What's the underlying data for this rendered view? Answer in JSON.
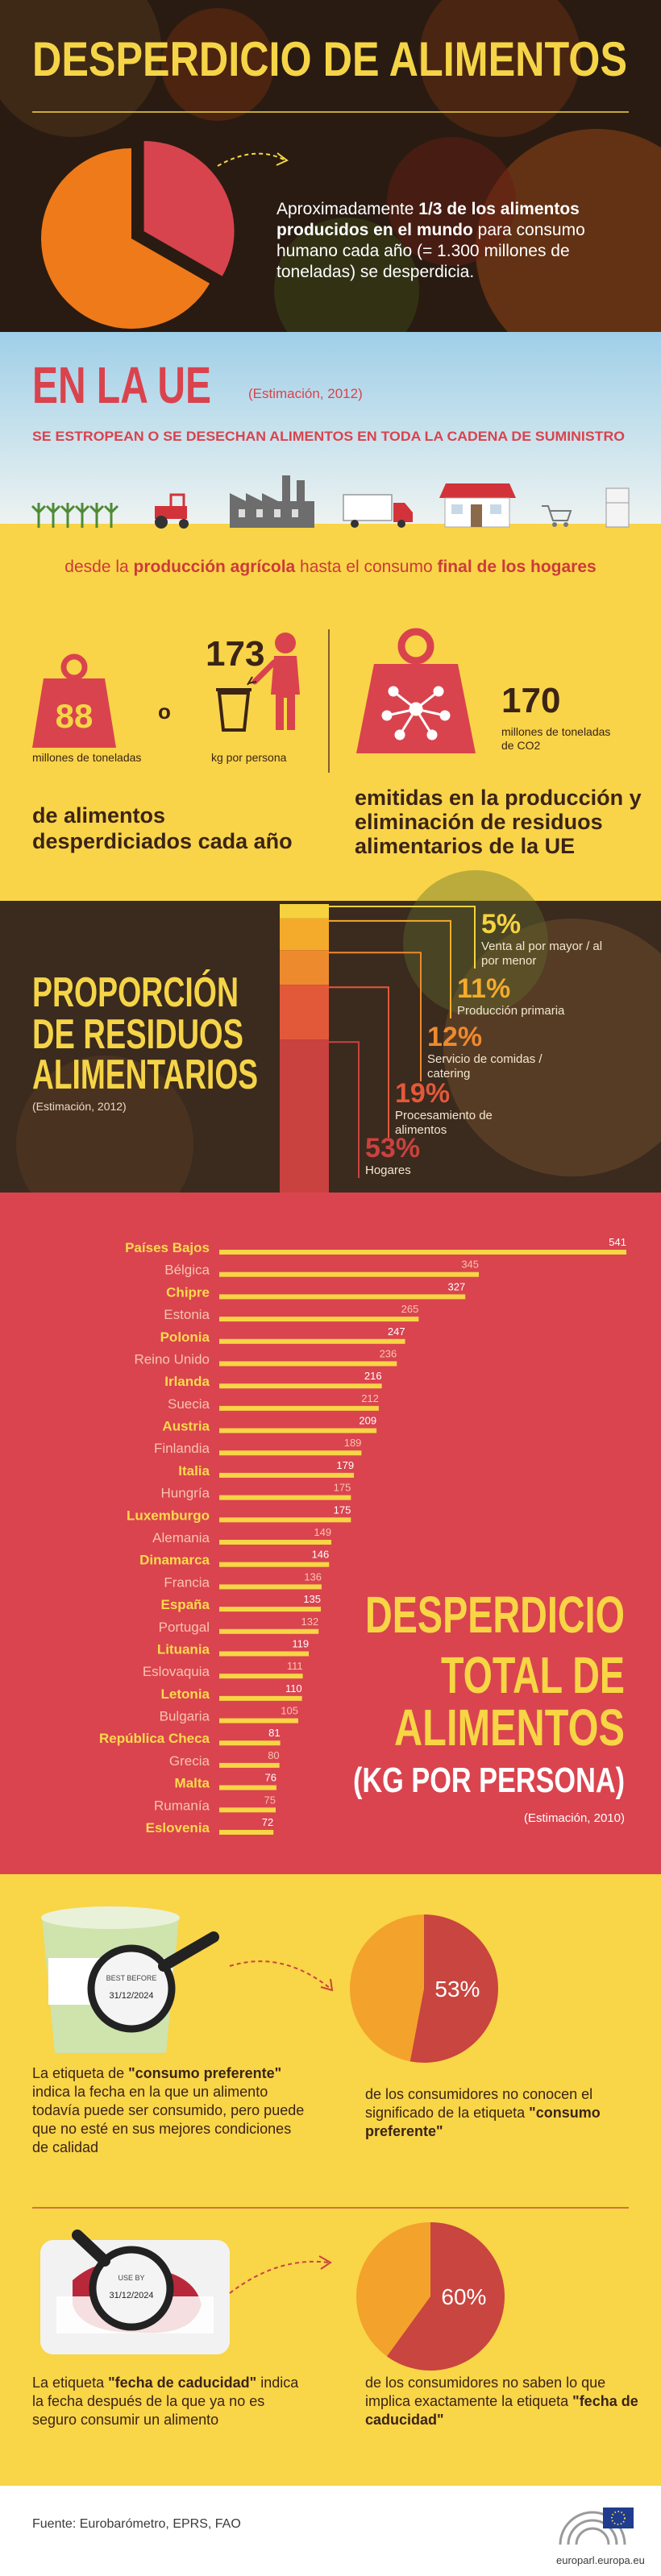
{
  "header": {
    "title": "DESPERDICIO DE ALIMENTOS",
    "intro": [
      "Aproximadamente ",
      "1/3 de los alimentos producidos en el mundo",
      " para consumo humano cada año (= 1.300 millones de toneladas) se desperdicia."
    ]
  },
  "eu": {
    "title": "EN LA UE",
    "note": "(Estimación, 2012)",
    "subtitle": "SE ESTROPEAN O SE DESECHAN ALIMENTOS EN TODA LA CADENA DE SUMINISTRO",
    "chain": [
      "desde la ",
      "producción agrícola",
      " hasta el consumo ",
      "final de los hogares"
    ]
  },
  "stats": {
    "tonnes": {
      "value": 88,
      "label": "millones de toneladas"
    },
    "or": "o",
    "per_person": {
      "value": 173,
      "label": "kg por persona"
    },
    "summary": "de alimentos desperdiciados cada año",
    "co2": {
      "value": 170,
      "label": "millones de toneladas de CO2"
    },
    "co2_summary": "emitidas en la producción y eliminación de residuos alimentarios de la UE"
  },
  "chart_data": [
    {
      "type": "pie",
      "values": [
        33.3
      ],
      "color": "#d7444e",
      "rest_color": "#ef7a1a"
    },
    {
      "type": "bar",
      "stacked": true,
      "title": [
        "PROPORCIÓN",
        "DE RESIDUOS",
        "ALIMENTARIOS"
      ],
      "subtitle": "(Estimación, 2012)",
      "series": [
        {
          "name": "Venta al por mayor / al por menor",
          "color": "#f6d23f",
          "values": [
            5
          ],
          "value_labels": [
            "5%"
          ]
        },
        {
          "name": "Producción primaria",
          "color": "#f4ab2c",
          "values": [
            11
          ],
          "value_labels": [
            "11%"
          ]
        },
        {
          "name": "Servicio de comidas / catering",
          "color": "#ee8a2e",
          "values": [
            12
          ],
          "value_labels": [
            "12%"
          ]
        },
        {
          "name": "Procesamiento de alimentos",
          "color": "#e2593a",
          "values": [
            19
          ],
          "value_labels": [
            "19%"
          ]
        },
        {
          "name": "Hogares",
          "color": "#c9423f",
          "values": [
            53
          ],
          "value_labels": [
            "53%"
          ]
        }
      ]
    },
    {
      "type": "bar",
      "orientation": "horizontal",
      "title": [
        "DESPERDICIO",
        "TOTAL DE",
        "ALIMENTOS"
      ],
      "unit": "(KG POR PERSONA)",
      "subtitle": "(Estimación, 2010)",
      "color": "#f7d545",
      "categories": [
        "Países Bajos",
        "Bélgica",
        "Chipre",
        "Estonia",
        "Polonia",
        "Reino Unido",
        "Irlanda",
        "Suecia",
        "Austria",
        "Finlandia",
        "Italia",
        "Hungría",
        "Luxemburgo",
        "Alemania",
        "Dinamarca",
        "Francia",
        "España",
        "Portugal",
        "Lituania",
        "Eslovaquia",
        "Letonia",
        "Bulgaria",
        "República Checa",
        "Grecia",
        "Malta",
        "Rumanía",
        "Eslovenia"
      ],
      "values": [
        541,
        345,
        327,
        265,
        247,
        236,
        216,
        212,
        209,
        189,
        179,
        175,
        175,
        149,
        146,
        136,
        135,
        132,
        119,
        111,
        110,
        105,
        81,
        80,
        76,
        75,
        72
      ]
    },
    {
      "type": "pie",
      "values": [
        53
      ],
      "value_labels": [
        "53%"
      ],
      "color": "#c9453f",
      "rest_color": "#f3a22b"
    },
    {
      "type": "pie",
      "values": [
        60
      ],
      "value_labels": [
        "60%"
      ],
      "color": "#c9453f",
      "rest_color": "#f3a22b"
    }
  ],
  "labels": {
    "best_before": {
      "tag": "BEST BEFORE",
      "date": "31/12/2024",
      "text": [
        "La etiqueta de ",
        "\"consumo preferente\"",
        " indica la fecha en la que un alimento todavía puede ser consumido, pero puede que no esté en sus mejores condiciones de calidad"
      ],
      "pie_text": [
        "de los consumidores no conocen el significado de la etiqueta  ",
        "\"consumo preferente\""
      ]
    },
    "use_by": {
      "tag": "USE BY",
      "date": "31/12/2024",
      "text": [
        "La etiqueta ",
        "\"fecha de caducidad\"",
        " indica la fecha después de la que ya no es seguro consumir un alimento"
      ],
      "pie_text": [
        "de los consumidores no saben lo que implica exactamente la etiqueta ",
        "\"fecha de caducidad\""
      ]
    }
  },
  "footer": {
    "source": "Fuente: Eurobarómetro, EPRS, FAO",
    "site": "europarl.europa.eu"
  }
}
